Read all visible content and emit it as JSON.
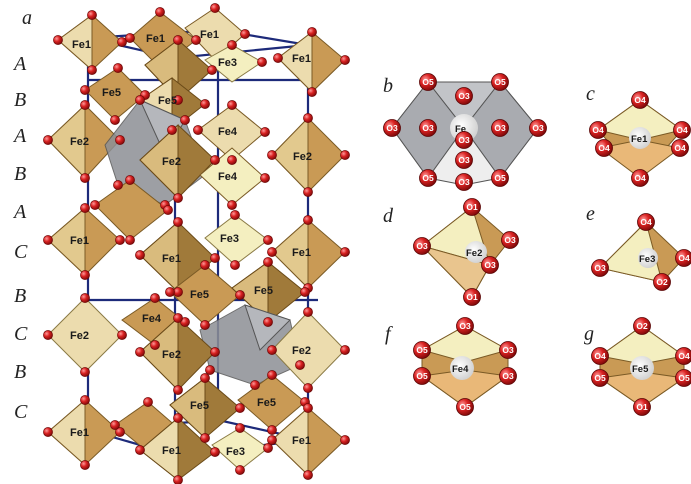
{
  "panels": {
    "a": "a",
    "b": "b",
    "c": "c",
    "d": "d",
    "e": "e",
    "f": "f",
    "g": "g"
  },
  "stacking": [
    "A",
    "B",
    "A",
    "B",
    "A",
    "C",
    "B",
    "C",
    "B",
    "C"
  ],
  "structure_labels": {
    "top": [
      "Fe1",
      "Fe1",
      "Fe1",
      "Fe1",
      "Fe3",
      "Fe5",
      "Fe5"
    ],
    "upper_mid": [
      "Fe2",
      "Fe2",
      "Fe2",
      "Fe4",
      "Fe4"
    ],
    "middle": [
      "Fe1",
      "Fe3",
      "Fe1",
      "Fe1",
      "Fe5",
      "Fe5"
    ],
    "lower_mid": [
      "Fe2",
      "Fe2",
      "Fe2",
      "Fe4"
    ],
    "bottom": [
      "Fe5",
      "Fe5",
      "Fe1",
      "Fe1",
      "Fe1",
      "Fe3"
    ]
  },
  "poly_b": {
    "center": "Fe",
    "oxygens": [
      "O5",
      "O3",
      "O5",
      "O3",
      "O3",
      "O3",
      "O3",
      "O3",
      "O5",
      "O3",
      "O5",
      "O3"
    ]
  },
  "poly_c": {
    "center": "Fe1",
    "oxygens": [
      "O4",
      "O4",
      "O4",
      "O4",
      "O4",
      "O4"
    ]
  },
  "poly_d": {
    "center": "Fe2",
    "oxygens": [
      "O1",
      "O3",
      "O3",
      "O3",
      "O1"
    ]
  },
  "poly_e": {
    "center": "Fe3",
    "oxygens": [
      "O4",
      "O3",
      "O4",
      "O2"
    ]
  },
  "poly_f": {
    "center": "Fe4",
    "oxygens": [
      "O3",
      "O5",
      "O3",
      "O5",
      "O3",
      "O5"
    ]
  },
  "poly_g": {
    "center": "Fe5",
    "oxygens": [
      "O2",
      "O4",
      "O4",
      "O5",
      "O5",
      "O1"
    ]
  },
  "colors": {
    "octa_dark": "#a07a3a",
    "octa_mid": "#c99a55",
    "octa_light": "#ecdcae",
    "tetra_light": "#f4efc0",
    "bipyr_gray": "#8d8f95",
    "oxygen": "#d21e1e",
    "cell_edge": "#1d2a7a"
  }
}
